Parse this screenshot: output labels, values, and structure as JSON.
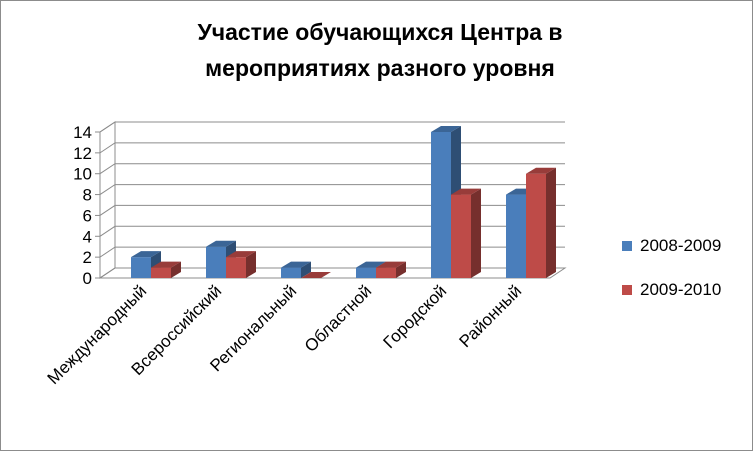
{
  "chart_data": {
    "type": "bar",
    "title_lines": [
      "Участие обучающихся Центра в",
      "мероприятиях разного уровня"
    ],
    "categories": [
      "Международный",
      "Всероссийский",
      "Региональный",
      "Областной",
      "Городской",
      "Районный"
    ],
    "series": [
      {
        "name": "2008-2009",
        "values": [
          2,
          3,
          1,
          1,
          14,
          8
        ],
        "color": "#4a7ebb"
      },
      {
        "name": "2009-2010",
        "values": [
          1,
          2,
          0,
          1,
          8,
          10
        ],
        "color": "#be4b48"
      }
    ],
    "yticks": [
      0,
      2,
      4,
      6,
      8,
      10,
      12,
      14
    ],
    "ylim": [
      0,
      14
    ],
    "grid": true,
    "legend": "right",
    "three_d": true
  }
}
